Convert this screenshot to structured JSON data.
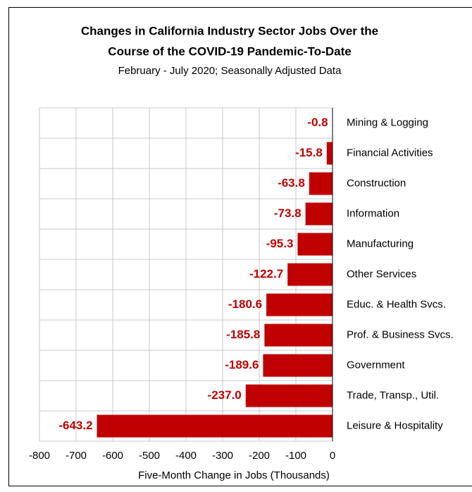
{
  "chart_data": {
    "type": "hbar",
    "title": [
      "Changes in California Industry Sector Jobs Over the",
      "Course of the COVID-19 Pandemic-To-Date"
    ],
    "subtitle": "February - July 2020; Seasonally Adjusted Data",
    "x_label": "Five-Month Change in Jobs (Thousands)",
    "categories": [
      "Mining & Logging",
      "Financial Activities",
      "Construction",
      "Information",
      "Manufacturing",
      "Other Services",
      "Educ. & Health Svcs.",
      "Prof. & Business Svcs.",
      "Government",
      "Trade, Transp., Util.",
      "Leisure & Hospitality"
    ],
    "values": [
      -0.8,
      -15.8,
      -63.8,
      -73.8,
      -95.3,
      -122.7,
      -180.6,
      -185.8,
      -189.6,
      -237,
      -643.2
    ],
    "value_labels": [
      "-0.8",
      "-15.8",
      "-63.8",
      "-73.8",
      "-95.3",
      "-122.7",
      "-180.6",
      "-185.8",
      "-189.6",
      "-237.0",
      "-643.2"
    ],
    "color": "#c00000",
    "xlim": [
      -800,
      0
    ],
    "xticks": [
      -800,
      -700,
      -600,
      -500,
      -400,
      -300,
      -200,
      -100,
      0
    ],
    "grid": true
  }
}
